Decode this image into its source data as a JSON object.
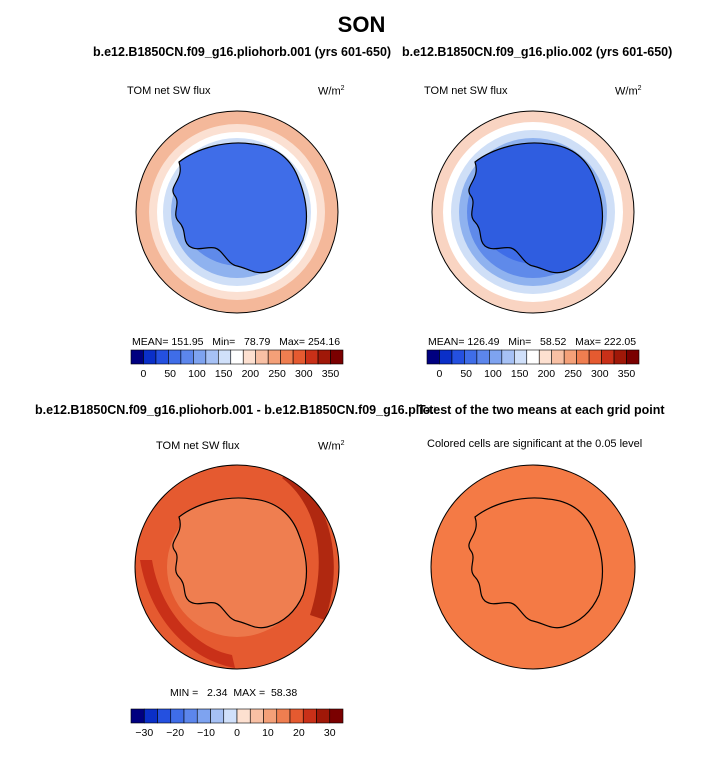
{
  "figure": {
    "title": "SON",
    "panels": [
      {
        "title": "b.e12.B1850CN.f09_g16.pliohorb.001 (yrs 601-650)",
        "left_label": "TOM net SW flux",
        "units": "W/m",
        "units_sup": "2",
        "stats": "MEAN= 151.95   Min=   78.79   Max= 254.16"
      },
      {
        "title": "b.e12.B1850CN.f09_g16.plio.002 (yrs 601-650)",
        "left_label": "TOM net SW flux",
        "units": "W/m",
        "units_sup": "2",
        "stats": "MEAN= 126.49   Min=   58.52   Max= 222.05"
      },
      {
        "title": "b.e12.B1850CN.f09_g16.pliohorb.001 - b.e12.B1850CN.f09_g16.plio.002",
        "left_label": "TOM net SW flux",
        "units": "W/m",
        "units_sup": "2",
        "stats": "MIN =   2.34  MAX =  58.38"
      },
      {
        "title": "T-test of the two means at each grid point",
        "left_label": "Colored cells are significant at the 0.05 level"
      }
    ]
  },
  "chart_data": [
    {
      "type": "heatmap",
      "title": "b.e12.B1850CN.f09_g16.pliohorb.001 (yrs 601-650)",
      "variable": "TOM net SW flux",
      "units": "W/m2",
      "mean": 151.95,
      "min": 78.79,
      "max": 254.16,
      "colorbar_ticks": [
        0,
        50,
        100,
        150,
        200,
        250,
        300,
        350
      ],
      "colorbar_colors": [
        "#000080",
        "#0a2fc8",
        "#2450e0",
        "#3f6de8",
        "#5c86ec",
        "#7ea3f0",
        "#a6c1f5",
        "#d0e0fa",
        "#ffffff",
        "#fde0d0",
        "#f8c0a4",
        "#f4a078",
        "#ef7e50",
        "#e55a30",
        "#c93018",
        "#a01808",
        "#7a0000"
      ]
    },
    {
      "type": "heatmap",
      "title": "b.e12.B1850CN.f09_g16.plio.002 (yrs 601-650)",
      "variable": "TOM net SW flux",
      "units": "W/m2",
      "mean": 126.49,
      "min": 58.52,
      "max": 222.05,
      "colorbar_ticks": [
        0,
        50,
        100,
        150,
        200,
        250,
        300,
        350
      ],
      "colorbar_colors": [
        "#000080",
        "#0a2fc8",
        "#2450e0",
        "#3f6de8",
        "#5c86ec",
        "#7ea3f0",
        "#a6c1f5",
        "#d0e0fa",
        "#ffffff",
        "#fde0d0",
        "#f8c0a4",
        "#f4a078",
        "#ef7e50",
        "#e55a30",
        "#c93018",
        "#a01808",
        "#7a0000"
      ]
    },
    {
      "type": "heatmap",
      "title": "b.e12.B1850CN.f09_g16.pliohorb.001 - b.e12.B1850CN.f09_g16.plio.002",
      "variable": "TOM net SW flux",
      "units": "W/m2",
      "min": 2.34,
      "max": 58.38,
      "colorbar_ticks": [
        -30,
        -20,
        -10,
        0,
        10,
        20,
        30
      ],
      "colorbar_colors": [
        "#000080",
        "#0a2fc8",
        "#2450e0",
        "#3f6de8",
        "#5c86ec",
        "#7ea3f0",
        "#a6c1f5",
        "#d0e0fa",
        "#fde0d0",
        "#f8c0a4",
        "#f4a078",
        "#ef7e50",
        "#e55a30",
        "#c93018",
        "#a01808",
        "#7a0000"
      ]
    },
    {
      "type": "heatmap",
      "title": "T-test of the two means at each grid point",
      "subtitle": "Colored cells are significant at the 0.05 level"
    }
  ]
}
